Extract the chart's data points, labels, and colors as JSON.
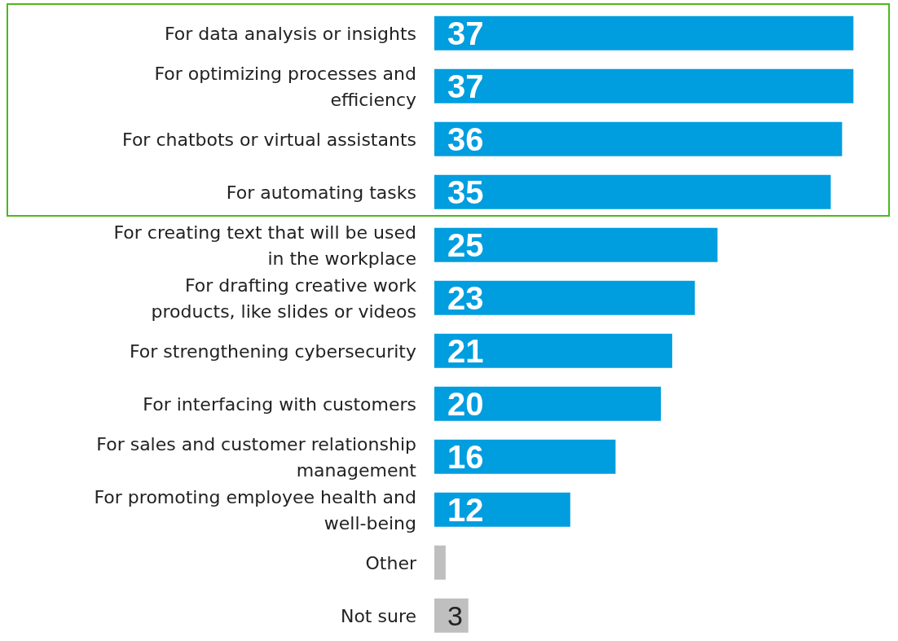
{
  "chart_data": {
    "type": "bar",
    "orientation": "horizontal",
    "categories": [
      "For data analysis or insights",
      "For optimizing processes and efficiency",
      "For chatbots or virtual assistants",
      "For automating tasks",
      "For creating text that will be used in the workplace",
      "For drafting creative work products, like slides or videos",
      "For strengthening cybersecurity",
      "For interfacing with customers",
      "For sales and customer relationship management",
      "For promoting employee health and well-being",
      "Other",
      "Not sure"
    ],
    "values": [
      37,
      37,
      36,
      35,
      25,
      23,
      21,
      20,
      16,
      12,
      1,
      3
    ],
    "value_labels": [
      "37",
      "37",
      "36",
      "35",
      "25",
      "23",
      "21",
      "20",
      "16",
      "12",
      null,
      "3"
    ],
    "colors": [
      "#009ddf",
      "#009ddf",
      "#009ddf",
      "#009ddf",
      "#009ddf",
      "#009ddf",
      "#009ddf",
      "#009ddf",
      "#009ddf",
      "#009ddf",
      "#bfbfbf",
      "#bfbfbf"
    ]
  }
}
